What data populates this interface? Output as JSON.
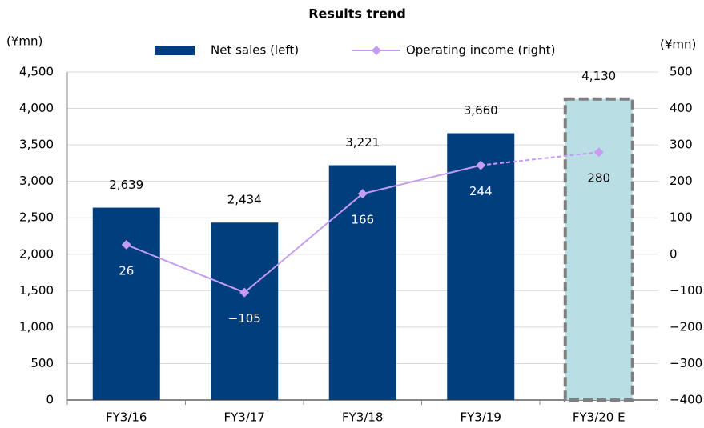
{
  "chart_data": {
    "type": "bar_line",
    "title": "Results trend",
    "y_unit": "(¥mn)",
    "y2_unit": "(¥mn)",
    "categories": [
      "FY3/16",
      "FY3/17",
      "FY3/18",
      "FY3/19",
      "FY3/20 E"
    ],
    "series": [
      {
        "name": "Net sales (left)",
        "type": "bar",
        "axis": "y",
        "color": "#003e7e",
        "values": [
          2639,
          2434,
          3221,
          3660,
          4130
        ],
        "value_labels": [
          "2,639",
          "2,434",
          "3,221",
          "3,660",
          "4,130"
        ]
      },
      {
        "name": "Operating income (right)",
        "type": "line",
        "axis": "y2",
        "color": "#c49cf2",
        "values": [
          26,
          -105,
          166,
          244,
          280
        ],
        "value_labels": [
          "26",
          "−105",
          "166",
          "244",
          "280"
        ]
      }
    ],
    "forecast": {
      "index": 4,
      "color": "#b9dfe4",
      "border": "#7f7f7f"
    },
    "ylim": [
      0,
      4500
    ],
    "yticks": [
      0,
      500,
      {
        "value": 1000,
        "label": "1,000"
      },
      {
        "value": 1500,
        "label": "1,500"
      },
      {
        "value": 2000,
        "label": "2,000"
      },
      {
        "value": 2500,
        "label": "2,500"
      },
      {
        "value": 3000,
        "label": "3,000"
      },
      {
        "value": 3500,
        "label": "3,500"
      },
      {
        "value": 4000,
        "label": "4,000"
      },
      {
        "value": 4500,
        "label": "4,500"
      }
    ],
    "y2lim": [
      -400,
      500
    ],
    "y2ticks": [
      {
        "value": -400,
        "label": "−400"
      },
      {
        "value": -300,
        "label": "−300"
      },
      {
        "value": -200,
        "label": "−200"
      },
      {
        "value": -100,
        "label": "−100"
      },
      0,
      100,
      200,
      300,
      400,
      500
    ],
    "grid": true
  }
}
